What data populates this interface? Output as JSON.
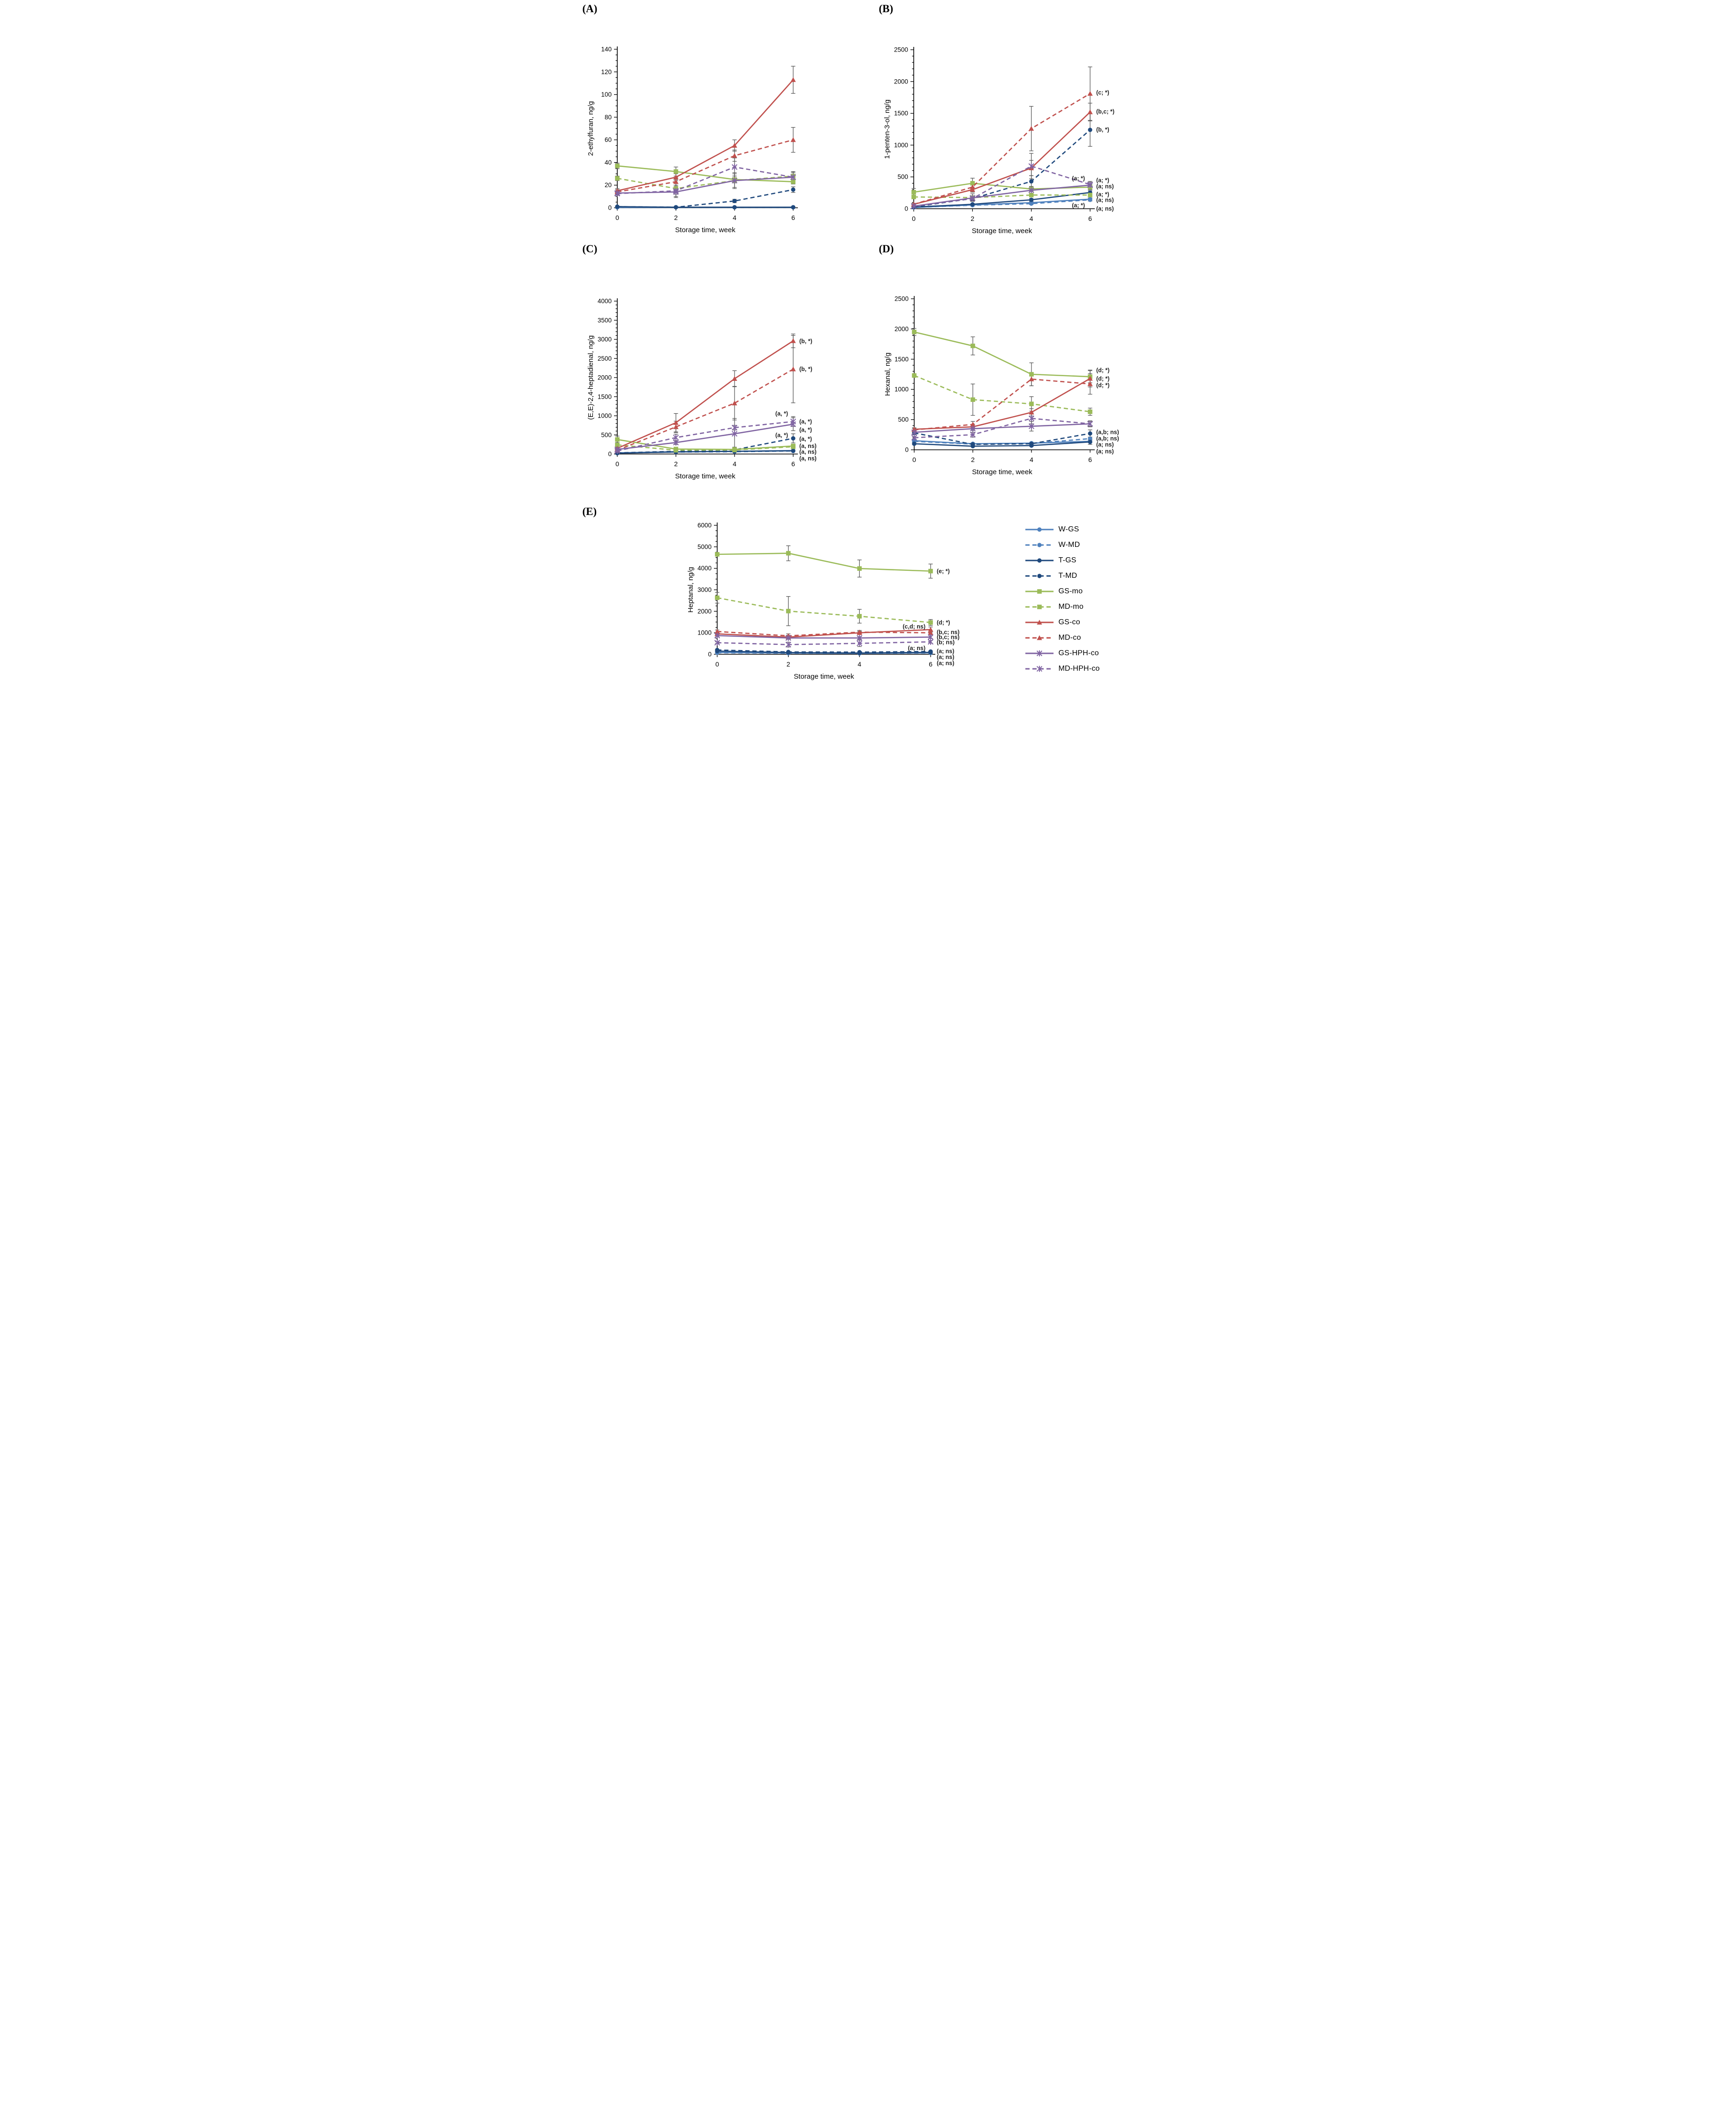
{
  "figure_title": "",
  "colors": {
    "w_blue": "#4f81bd",
    "t_navy": "#1f497d",
    "mo_green": "#9bbb59",
    "co_red": "#c0504d",
    "hph_purple": "#8064a2",
    "error_bar": "#595959",
    "axis": "#000000",
    "annotation_text": "#1f1f1f"
  },
  "legend": {
    "position": "bottom-right",
    "items": [
      {
        "label": "W-GS",
        "color": "#4f81bd",
        "dash": false,
        "marker": "circle"
      },
      {
        "label": "W-MD",
        "color": "#4f81bd",
        "dash": true,
        "marker": "circle"
      },
      {
        "label": "T-GS",
        "color": "#1f497d",
        "dash": false,
        "marker": "circle"
      },
      {
        "label": "T-MD",
        "color": "#1f497d",
        "dash": true,
        "marker": "circle"
      },
      {
        "label": "GS-mo",
        "color": "#9bbb59",
        "dash": false,
        "marker": "square"
      },
      {
        "label": "MD-mo",
        "color": "#9bbb59",
        "dash": true,
        "marker": "square"
      },
      {
        "label": "GS-co",
        "color": "#c0504d",
        "dash": false,
        "marker": "triangle"
      },
      {
        "label": "MD-co",
        "color": "#c0504d",
        "dash": true,
        "marker": "triangle"
      },
      {
        "label": "GS-HPH-co",
        "color": "#8064a2",
        "dash": false,
        "marker": "star"
      },
      {
        "label": "MD-HPH-co",
        "color": "#8064a2",
        "dash": true,
        "marker": "star"
      }
    ]
  },
  "chart_data": [
    {
      "id": "A",
      "panel_label": "(A)",
      "type": "line",
      "xlabel": "Storage time, week",
      "ylabel": "2-ethylfuran, ng/g",
      "x": [
        0,
        2,
        4,
        6
      ],
      "ylim": [
        0,
        140
      ],
      "ystep": 20,
      "yminor": 5,
      "grid": false,
      "series": [
        {
          "name": "W-GS",
          "values": [
            0.4,
            0.4,
            0.4,
            0.4
          ],
          "errors": [
            0,
            0,
            0,
            0
          ]
        },
        {
          "name": "W-MD",
          "values": [
            0.4,
            0.4,
            0.4,
            0.4
          ],
          "errors": [
            0,
            0,
            0,
            0
          ]
        },
        {
          "name": "T-GS",
          "values": [
            1,
            0.5,
            0.5,
            0.5
          ],
          "errors": [
            0.5,
            0,
            0,
            0
          ]
        },
        {
          "name": "T-MD",
          "values": [
            1,
            0.5,
            6,
            16
          ],
          "errors": [
            0.5,
            0.5,
            1.5,
            2.5
          ]
        },
        {
          "name": "GS-mo",
          "values": [
            37,
            32,
            25,
            23
          ],
          "errors": [
            2.5,
            4,
            3,
            2
          ]
        },
        {
          "name": "MD-mo",
          "values": [
            26,
            17,
            24,
            28
          ],
          "errors": [
            2,
            8,
            7,
            4
          ]
        },
        {
          "name": "GS-co",
          "values": [
            15,
            27,
            55,
            113
          ],
          "errors": [
            2,
            3,
            5,
            12
          ]
        },
        {
          "name": "MD-co",
          "values": [
            14,
            23,
            46,
            60
          ],
          "errors": [
            2,
            4,
            5,
            11
          ]
        },
        {
          "name": "GS-HPH-co",
          "values": [
            13,
            14,
            24,
            27
          ],
          "errors": [
            1.5,
            2,
            6,
            4
          ]
        },
        {
          "name": "MD-HPH-co",
          "values": [
            12.5,
            15,
            36,
            27
          ],
          "errors": [
            1.5,
            5,
            8,
            5
          ]
        }
      ],
      "annotations": []
    },
    {
      "id": "B",
      "panel_label": "(B)",
      "type": "line",
      "xlabel": "Storage time, week",
      "ylabel": "1-penten-3-ol, ng/g",
      "x": [
        0,
        2,
        4,
        6
      ],
      "ylim": [
        0,
        2500
      ],
      "ystep": 500,
      "yminor": 100,
      "grid": false,
      "series": [
        {
          "name": "W-GS",
          "values": [
            20,
            60,
            95,
            150
          ],
          "errors": [
            5,
            10,
            15,
            20
          ]
        },
        {
          "name": "W-MD",
          "values": [
            20,
            55,
            80,
            140
          ],
          "errors": [
            5,
            10,
            15,
            20
          ]
        },
        {
          "name": "T-GS",
          "values": [
            25,
            70,
            140,
            255
          ],
          "errors": [
            5,
            10,
            20,
            30
          ]
        },
        {
          "name": "T-MD",
          "values": [
            30,
            160,
            430,
            1240
          ],
          "errors": [
            10,
            30,
            90,
            260
          ]
        },
        {
          "name": "GS-mo",
          "values": [
            260,
            400,
            310,
            340
          ],
          "errors": [
            60,
            80,
            40,
            40
          ]
        },
        {
          "name": "MD-mo",
          "values": [
            185,
            175,
            215,
            215
          ],
          "errors": [
            25,
            60,
            30,
            25
          ]
        },
        {
          "name": "GS-co",
          "values": [
            70,
            300,
            640,
            1520
          ],
          "errors": [
            15,
            40,
            120,
            140
          ]
        },
        {
          "name": "MD-co",
          "values": [
            70,
            340,
            1260,
            1810
          ],
          "errors": [
            15,
            60,
            350,
            420
          ]
        },
        {
          "name": "GS-HPH-co",
          "values": [
            40,
            170,
            290,
            370
          ],
          "errors": [
            10,
            30,
            60,
            45
          ]
        },
        {
          "name": "MD-HPH-co",
          "values": [
            40,
            160,
            670,
            380
          ],
          "errors": [
            10,
            40,
            200,
            50
          ]
        }
      ],
      "annotations": [
        {
          "text": "(c; *)",
          "y": 1830,
          "col": "outer"
        },
        {
          "text": "(b,c; *)",
          "y": 1530,
          "col": "outer"
        },
        {
          "text": "(b, *)",
          "y": 1245,
          "col": "outer"
        },
        {
          "text": "(a; *)",
          "y": 480,
          "col": "inner"
        },
        {
          "text": "(a; *)",
          "y": 450,
          "col": "outer"
        },
        {
          "text": "(a; ns)",
          "y": 355,
          "col": "outer"
        },
        {
          "text": "(a; *)",
          "y": 230,
          "col": "outer"
        },
        {
          "text": "(a; ns)",
          "y": 140,
          "col": "outer"
        },
        {
          "text": "(a; *)",
          "y": 55,
          "col": "inner"
        },
        {
          "text": "(a; ns)",
          "y": 5,
          "col": "outer"
        }
      ]
    },
    {
      "id": "C",
      "panel_label": "(C)",
      "type": "line",
      "xlabel": "Storage time, week",
      "ylabel": "(E,E)-2,4-heptadienal, ng/g",
      "x": [
        0,
        2,
        4,
        6
      ],
      "ylim": [
        0,
        4000
      ],
      "ystep": 500,
      "yminor": 100,
      "grid": false,
      "series": [
        {
          "name": "W-GS",
          "values": [
            30,
            60,
            70,
            90
          ],
          "errors": [
            5,
            10,
            10,
            15
          ]
        },
        {
          "name": "W-MD",
          "values": [
            25,
            50,
            60,
            80
          ],
          "errors": [
            5,
            10,
            10,
            10
          ]
        },
        {
          "name": "T-GS",
          "values": [
            20,
            55,
            70,
            85
          ],
          "errors": [
            5,
            10,
            10,
            15
          ]
        },
        {
          "name": "T-MD",
          "values": [
            30,
            70,
            110,
            410
          ],
          "errors": [
            10,
            15,
            25,
            120
          ]
        },
        {
          "name": "GS-mo",
          "values": [
            380,
            130,
            120,
            210
          ],
          "errors": [
            90,
            30,
            60,
            30
          ]
        },
        {
          "name": "MD-mo",
          "values": [
            240,
            100,
            105,
            190
          ],
          "errors": [
            60,
            25,
            25,
            30
          ]
        },
        {
          "name": "GS-co",
          "values": [
            150,
            820,
            1970,
            2960
          ],
          "errors": [
            30,
            240,
            210,
            180
          ]
        },
        {
          "name": "MD-co",
          "values": [
            100,
            710,
            1330,
            2220
          ],
          "errors": [
            25,
            150,
            440,
            880
          ]
        },
        {
          "name": "GS-HPH-co",
          "values": [
            120,
            300,
            530,
            780
          ],
          "errors": [
            25,
            50,
            400,
            170
          ]
        },
        {
          "name": "MD-HPH-co",
          "values": [
            80,
            430,
            690,
            850
          ],
          "errors": [
            20,
            90,
            60,
            130
          ]
        }
      ],
      "annotations": [
        {
          "text": "(b, *)",
          "y": 2960,
          "col": "outer"
        },
        {
          "text": "(b, *)",
          "y": 2230,
          "col": "outer"
        },
        {
          "text": "(a, *)",
          "y": 1060,
          "col": "inner"
        },
        {
          "text": "(a, *)",
          "y": 855,
          "col": "outer"
        },
        {
          "text": "(a, *)",
          "y": 640,
          "col": "outer"
        },
        {
          "text": "(a, *)",
          "y": 500,
          "col": "inner"
        },
        {
          "text": "(a, *)",
          "y": 400,
          "col": "outer"
        },
        {
          "text": "(a, ns)",
          "y": 215,
          "col": "outer"
        },
        {
          "text": "(a, ns)",
          "y": 60,
          "col": "outer"
        },
        {
          "text": "(a, ns)",
          "y": -110,
          "col": "outer"
        }
      ]
    },
    {
      "id": "D",
      "panel_label": "(D)",
      "type": "line",
      "xlabel": "Storage time, week",
      "ylabel": "Hexanal, ng/g",
      "x": [
        0,
        2,
        4,
        6
      ],
      "ylim": [
        0,
        2500
      ],
      "ystep": 500,
      "yminor": 100,
      "grid": false,
      "series": [
        {
          "name": "W-GS",
          "values": [
            150,
            100,
            110,
            140
          ],
          "errors": [
            15,
            15,
            15,
            20
          ]
        },
        {
          "name": "W-MD",
          "values": [
            140,
            95,
            105,
            185
          ],
          "errors": [
            15,
            15,
            15,
            25
          ]
        },
        {
          "name": "T-GS",
          "values": [
            100,
            60,
            70,
            130
          ],
          "errors": [
            15,
            10,
            15,
            40
          ]
        },
        {
          "name": "T-MD",
          "values": [
            280,
            90,
            100,
            270
          ],
          "errors": [
            30,
            25,
            20,
            60
          ]
        },
        {
          "name": "GS-mo",
          "values": [
            1950,
            1720,
            1250,
            1210
          ],
          "errors": [
            60,
            150,
            190,
            100
          ]
        },
        {
          "name": "MD-mo",
          "values": [
            1230,
            830,
            760,
            630
          ],
          "errors": [
            30,
            260,
            120,
            60
          ]
        },
        {
          "name": "GS-co",
          "values": [
            340,
            380,
            620,
            1180
          ],
          "errors": [
            25,
            40,
            60,
            140
          ]
        },
        {
          "name": "MD-co",
          "values": [
            330,
            420,
            1170,
            1090
          ],
          "errors": [
            25,
            50,
            110,
            170
          ]
        },
        {
          "name": "GS-HPH-co",
          "values": [
            290,
            350,
            390,
            430
          ],
          "errors": [
            20,
            30,
            80,
            40
          ]
        },
        {
          "name": "MD-HPH-co",
          "values": [
            200,
            250,
            520,
            430
          ],
          "errors": [
            20,
            40,
            90,
            50
          ]
        }
      ],
      "annotations": [
        {
          "text": "(d; *)",
          "y": 1320,
          "col": "outer"
        },
        {
          "text": "(d; *)",
          "y": 1180,
          "col": "outer"
        },
        {
          "text": "(d; *)",
          "y": 1070,
          "col": "outer"
        },
        {
          "text": "(a,b; ns)",
          "y": 295,
          "col": "outer"
        },
        {
          "text": "(a,b; ns)",
          "y": 190,
          "col": "outer"
        },
        {
          "text": "(a; ns)",
          "y": 90,
          "col": "outer"
        },
        {
          "text": "(a; ns)",
          "y": -25,
          "col": "outer"
        }
      ]
    },
    {
      "id": "E",
      "panel_label": "(E)",
      "type": "line",
      "xlabel": "Storage time, week",
      "ylabel": "Heptanal, ng/g",
      "x": [
        0,
        2,
        4,
        6
      ],
      "ylim": [
        0,
        6000
      ],
      "ystep": 1000,
      "yminor": 250,
      "grid": false,
      "series": [
        {
          "name": "W-GS",
          "values": [
            90,
            60,
            50,
            70
          ],
          "errors": [
            10,
            10,
            10,
            10
          ]
        },
        {
          "name": "W-MD",
          "values": [
            70,
            50,
            40,
            60
          ],
          "errors": [
            10,
            10,
            10,
            10
          ]
        },
        {
          "name": "T-GS",
          "values": [
            150,
            80,
            60,
            90
          ],
          "errors": [
            20,
            15,
            10,
            15
          ]
        },
        {
          "name": "T-MD",
          "values": [
            200,
            110,
            100,
            130
          ],
          "errors": [
            30,
            20,
            15,
            20
          ]
        },
        {
          "name": "GS-mo",
          "values": [
            4650,
            4700,
            3990,
            3870
          ],
          "errors": [
            80,
            350,
            400,
            330
          ]
        },
        {
          "name": "MD-mo",
          "values": [
            2630,
            2010,
            1770,
            1480
          ],
          "errors": [
            250,
            680,
            320,
            140
          ]
        },
        {
          "name": "GS-co",
          "values": [
            950,
            800,
            1000,
            1150
          ],
          "errors": [
            60,
            80,
            70,
            120
          ]
        },
        {
          "name": "MD-co",
          "values": [
            1060,
            860,
            1030,
            1000
          ],
          "errors": [
            70,
            90,
            80,
            90
          ]
        },
        {
          "name": "GS-HPH-co",
          "values": [
            870,
            760,
            760,
            800
          ],
          "errors": [
            50,
            60,
            60,
            60
          ]
        },
        {
          "name": "MD-HPH-co",
          "values": [
            540,
            450,
            510,
            580
          ],
          "errors": [
            40,
            110,
            150,
            60
          ]
        }
      ],
      "annotations": [
        {
          "text": "(e; *)",
          "y": 3870,
          "col": "outer"
        },
        {
          "text": "(d; *)",
          "y": 1480,
          "col": "outer"
        },
        {
          "text": "(c,d; ns)",
          "y": 1300,
          "col": "inner"
        },
        {
          "text": "(b,c; ns)",
          "y": 1040,
          "col": "outer"
        },
        {
          "text": "(b,c; ns)",
          "y": 810,
          "col": "outer"
        },
        {
          "text": "(b; ns)",
          "y": 565,
          "col": "outer"
        },
        {
          "text": "(a; ns)",
          "y": 300,
          "col": "inner"
        },
        {
          "text": "(a; ns)",
          "y": 150,
          "col": "outer"
        },
        {
          "text": "(a; ns)",
          "y": -120,
          "col": "outer"
        },
        {
          "text": "(a; ns)",
          "y": -400,
          "col": "outer"
        }
      ]
    }
  ]
}
